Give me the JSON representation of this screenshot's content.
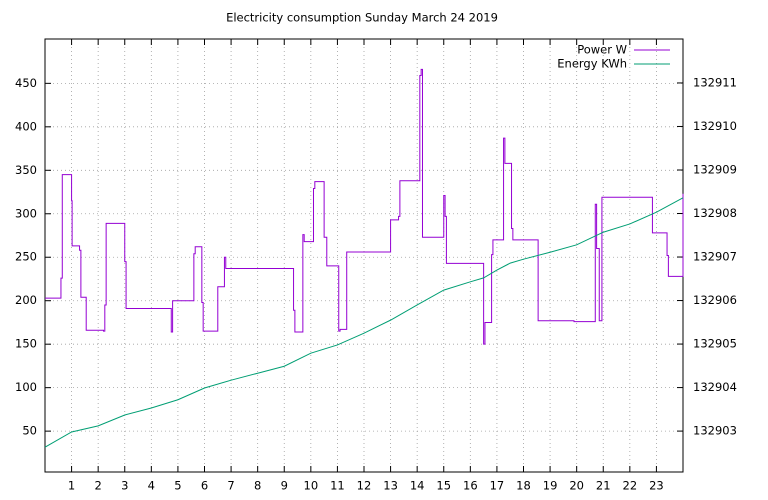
{
  "chart_data": {
    "type": "line",
    "title": "Electricity consumption Sunday March 24 2019",
    "xlim": [
      0,
      24
    ],
    "xticks": [
      1,
      2,
      3,
      4,
      5,
      6,
      7,
      8,
      9,
      10,
      11,
      12,
      13,
      14,
      15,
      16,
      17,
      18,
      19,
      20,
      21,
      22,
      23
    ],
    "ylim": [
      3,
      501
    ],
    "yticks": [
      50,
      100,
      150,
      200,
      250,
      300,
      350,
      400,
      450
    ],
    "y2lim": [
      132902.06,
      132912.01
    ],
    "y2ticks": [
      132903,
      132904,
      132905,
      132906,
      132907,
      132908,
      132909,
      132910,
      132911
    ],
    "grid": true,
    "legend": "top-right",
    "series": [
      {
        "name": "Power W",
        "color": "#9400d3",
        "style": "steps",
        "x": [
          0,
          0.6,
          0.65,
          1.0,
          1.02,
          1.3,
          1.35,
          1.55,
          2.2,
          2.25,
          2.3,
          3.0,
          3.05,
          4.15,
          4.75,
          4.8,
          5.6,
          5.65,
          5.9,
          5.95,
          6.5,
          6.75,
          6.8,
          9.35,
          9.4,
          9.7,
          9.75,
          10.1,
          10.15,
          10.5,
          10.6,
          11.05,
          11.1,
          11.35,
          13.0,
          13.3,
          13.35,
          14.1,
          14.15,
          14.2,
          15.0,
          15.05,
          15.1,
          16.5,
          16.55,
          16.8,
          16.85,
          17.25,
          17.3,
          17.55,
          17.6,
          18.55,
          19.9,
          20.7,
          20.75,
          20.85,
          20.95,
          22.85,
          23.4,
          23.45,
          24
        ],
        "values": [
          203,
          226,
          345,
          315,
          263,
          258,
          204,
          166,
          165,
          195,
          289,
          245,
          191,
          191,
          164,
          200,
          254,
          262,
          198,
          165,
          216,
          250,
          237,
          189,
          164,
          276,
          268,
          329,
          337,
          273,
          240,
          165,
          167,
          256,
          293,
          297,
          338,
          459,
          466,
          273,
          321,
          297,
          243,
          150,
          175,
          253,
          270,
          387,
          358,
          283,
          270,
          177,
          176,
          311,
          260,
          177,
          319,
          278,
          252,
          228,
          323
        ]
      },
      {
        "name": "Energy KWh",
        "color": "#009e73",
        "axis": "y2",
        "x": [
          0,
          1,
          2,
          3,
          4,
          5,
          6,
          7,
          8,
          9,
          10,
          11,
          12,
          13,
          14,
          15,
          16,
          16.5,
          17,
          17.5,
          18,
          19,
          20,
          21,
          22,
          23,
          24
        ],
        "values": [
          132902.63,
          132902.98,
          132903.12,
          132903.37,
          132903.53,
          132903.72,
          132903.99,
          132904.17,
          132904.33,
          132904.49,
          132904.79,
          132904.98,
          132905.25,
          132905.55,
          132905.9,
          132906.24,
          132906.43,
          132906.52,
          132906.7,
          132906.86,
          132906.95,
          132907.11,
          132907.28,
          132907.57,
          132907.76,
          132908.03,
          132908.36
        ]
      }
    ]
  }
}
